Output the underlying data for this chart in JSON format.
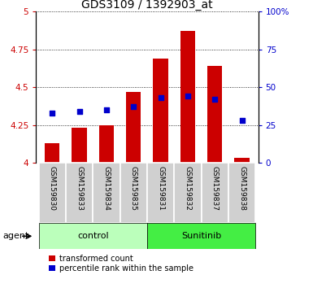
{
  "title": "GDS3109 / 1392903_at",
  "samples": [
    "GSM159830",
    "GSM159833",
    "GSM159834",
    "GSM159835",
    "GSM159831",
    "GSM159832",
    "GSM159837",
    "GSM159838"
  ],
  "groups": [
    "control",
    "control",
    "control",
    "control",
    "Sunitinib",
    "Sunitinib",
    "Sunitinib",
    "Sunitinib"
  ],
  "transformed_counts": [
    4.13,
    4.23,
    4.25,
    4.47,
    4.69,
    4.87,
    4.64,
    4.03
  ],
  "percentile_ranks": [
    33,
    34,
    35,
    37,
    43,
    44,
    42,
    28
  ],
  "ylim_left": [
    4.0,
    5.0
  ],
  "ylim_right": [
    0,
    100
  ],
  "yticks_left": [
    4.0,
    4.25,
    4.5,
    4.75,
    5.0
  ],
  "yticks_right": [
    0,
    25,
    50,
    75,
    100
  ],
  "bar_color": "#cc0000",
  "dot_color": "#0000cc",
  "control_bg_light": "#ccffcc",
  "sunitinib_bg": "#33dd33",
  "legend_items": [
    "transformed count",
    "percentile rank within the sample"
  ],
  "bar_bottom": 4.0,
  "title_fontsize": 10,
  "tick_fontsize": 7.5,
  "label_fontsize": 8,
  "sample_fontsize": 6.5
}
